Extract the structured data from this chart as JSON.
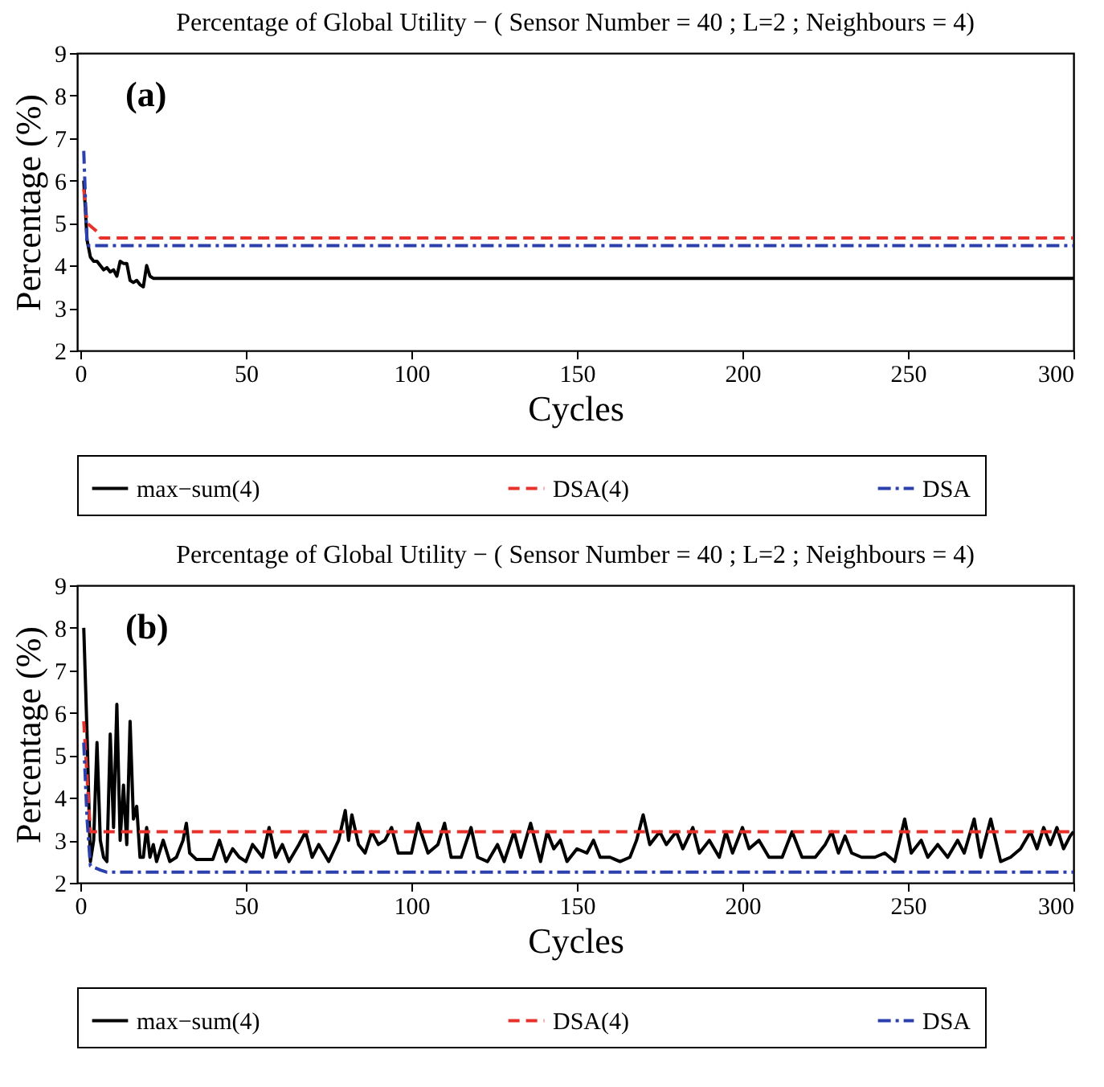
{
  "chart_data": [
    {
      "type": "line",
      "title": "Percentage of Global Utility − ( Sensor Number = 40 ; L=2 ; Neighbours = 4)",
      "xlabel": "Cycles",
      "ylabel": "Percentage (%)",
      "annotations": [
        "(a)"
      ],
      "xlim": [
        -1,
        300
      ],
      "ylim": [
        2,
        9
      ],
      "xticks": [
        0,
        50,
        100,
        150,
        200,
        250,
        300
      ],
      "yticks": [
        2,
        3,
        4,
        5,
        6,
        7,
        8,
        9
      ],
      "grid": false,
      "legend": "bottom",
      "series": [
        {
          "name": "max−sum(4)",
          "color": "#000000",
          "line_style": "solid",
          "x": [
            1,
            2,
            3,
            4,
            5,
            6,
            7,
            8,
            9,
            10,
            11,
            12,
            13,
            14,
            15,
            16,
            17,
            18,
            19,
            20,
            21,
            22,
            300
          ],
          "values": [
            6.0,
            4.6,
            4.2,
            4.1,
            4.1,
            4.0,
            3.9,
            3.95,
            3.85,
            3.9,
            3.75,
            4.1,
            4.05,
            4.05,
            3.65,
            3.6,
            3.65,
            3.55,
            3.5,
            4.0,
            3.75,
            3.7,
            3.7
          ]
        },
        {
          "name": "DSA(4)",
          "color": "#e8312b",
          "line_style": "dashed",
          "x": [
            1,
            2,
            5,
            6,
            300
          ],
          "values": [
            5.8,
            5.0,
            4.8,
            4.65,
            4.65
          ]
        },
        {
          "name": "DSA",
          "color": "#2b3fad",
          "line_style": "dotted",
          "x": [
            1,
            2,
            300
          ],
          "values": [
            6.7,
            4.47,
            4.47
          ]
        }
      ]
    },
    {
      "type": "line",
      "title": "Percentage of Global Utility − ( Sensor Number = 40 ; L=2 ; Neighbours = 4)",
      "xlabel": "Cycles",
      "ylabel": "Percentage (%)",
      "annotations": [
        "(b)"
      ],
      "xlim": [
        -1,
        300
      ],
      "ylim": [
        2,
        9
      ],
      "xticks": [
        0,
        50,
        100,
        150,
        200,
        250,
        300
      ],
      "yticks": [
        2,
        3,
        4,
        5,
        6,
        7,
        8,
        9
      ],
      "grid": false,
      "legend": "bottom",
      "series": [
        {
          "name": "max−sum(4)",
          "color": "#000000",
          "line_style": "solid",
          "x": [
            1,
            2,
            3,
            4,
            5,
            6,
            7,
            8,
            9,
            10,
            11,
            12,
            13,
            14,
            15,
            16,
            17,
            18,
            19,
            20,
            21,
            22,
            23,
            25,
            27,
            29,
            31,
            32,
            33,
            35,
            40,
            42,
            44,
            46,
            48,
            50,
            52,
            55,
            57,
            59,
            61,
            63,
            66,
            68,
            70,
            72,
            75,
            78,
            80,
            81,
            82,
            84,
            86,
            88,
            90,
            92,
            94,
            96,
            100,
            102,
            105,
            108,
            110,
            112,
            115,
            118,
            120,
            123,
            126,
            128,
            131,
            133,
            136,
            139,
            141,
            143,
            145,
            147,
            150,
            153,
            155,
            157,
            160,
            163,
            166,
            168,
            170,
            172,
            175,
            177,
            180,
            182,
            185,
            187,
            190,
            193,
            195,
            197,
            200,
            202,
            205,
            208,
            212,
            215,
            218,
            222,
            225,
            227,
            229,
            231,
            233,
            236,
            240,
            243,
            246,
            249,
            251,
            254,
            256,
            259,
            262,
            265,
            267,
            270,
            272,
            275,
            278,
            281,
            284,
            287,
            289,
            291,
            293,
            295,
            297,
            299,
            300
          ],
          "values": [
            8.0,
            5.5,
            2.5,
            3.0,
            5.3,
            3.0,
            2.6,
            2.5,
            5.5,
            3.3,
            6.2,
            3.0,
            4.3,
            2.9,
            5.8,
            3.5,
            3.8,
            2.6,
            2.6,
            3.3,
            2.6,
            2.9,
            2.5,
            3.0,
            2.5,
            2.6,
            3.0,
            3.4,
            2.7,
            2.55,
            2.55,
            3.0,
            2.5,
            2.8,
            2.6,
            2.5,
            2.9,
            2.6,
            3.3,
            2.6,
            2.9,
            2.5,
            2.9,
            3.2,
            2.6,
            2.9,
            2.5,
            3.0,
            3.7,
            3.0,
            3.6,
            2.9,
            2.7,
            3.2,
            2.9,
            3.0,
            3.3,
            2.7,
            2.7,
            3.4,
            2.7,
            2.9,
            3.4,
            2.6,
            2.6,
            3.3,
            2.6,
            2.5,
            2.9,
            2.5,
            3.2,
            2.6,
            3.4,
            2.5,
            3.2,
            2.8,
            3.0,
            2.5,
            2.8,
            2.7,
            3.0,
            2.6,
            2.6,
            2.5,
            2.6,
            3.0,
            3.6,
            2.9,
            3.2,
            2.9,
            3.2,
            2.8,
            3.3,
            2.7,
            3.0,
            2.6,
            3.2,
            2.7,
            3.3,
            2.8,
            3.0,
            2.6,
            2.6,
            3.2,
            2.6,
            2.6,
            2.9,
            3.2,
            2.7,
            3.1,
            2.7,
            2.6,
            2.6,
            2.7,
            2.5,
            3.5,
            2.7,
            3.0,
            2.6,
            2.9,
            2.6,
            3.0,
            2.7,
            3.5,
            2.6,
            3.5,
            2.5,
            2.6,
            2.8,
            3.2,
            2.8,
            3.3,
            2.9,
            3.3,
            2.8,
            3.1,
            3.2
          ]
        },
        {
          "name": "DSA(4)",
          "color": "#e8312b",
          "line_style": "dashed",
          "x": [
            1,
            2,
            3,
            300
          ],
          "values": [
            5.8,
            4.5,
            3.2,
            3.2
          ]
        },
        {
          "name": "DSA",
          "color": "#2b3fad",
          "line_style": "dotted",
          "x": [
            1,
            2,
            3,
            6,
            8,
            300
          ],
          "values": [
            5.3,
            3.5,
            2.4,
            2.3,
            2.25,
            2.25
          ]
        }
      ]
    }
  ]
}
